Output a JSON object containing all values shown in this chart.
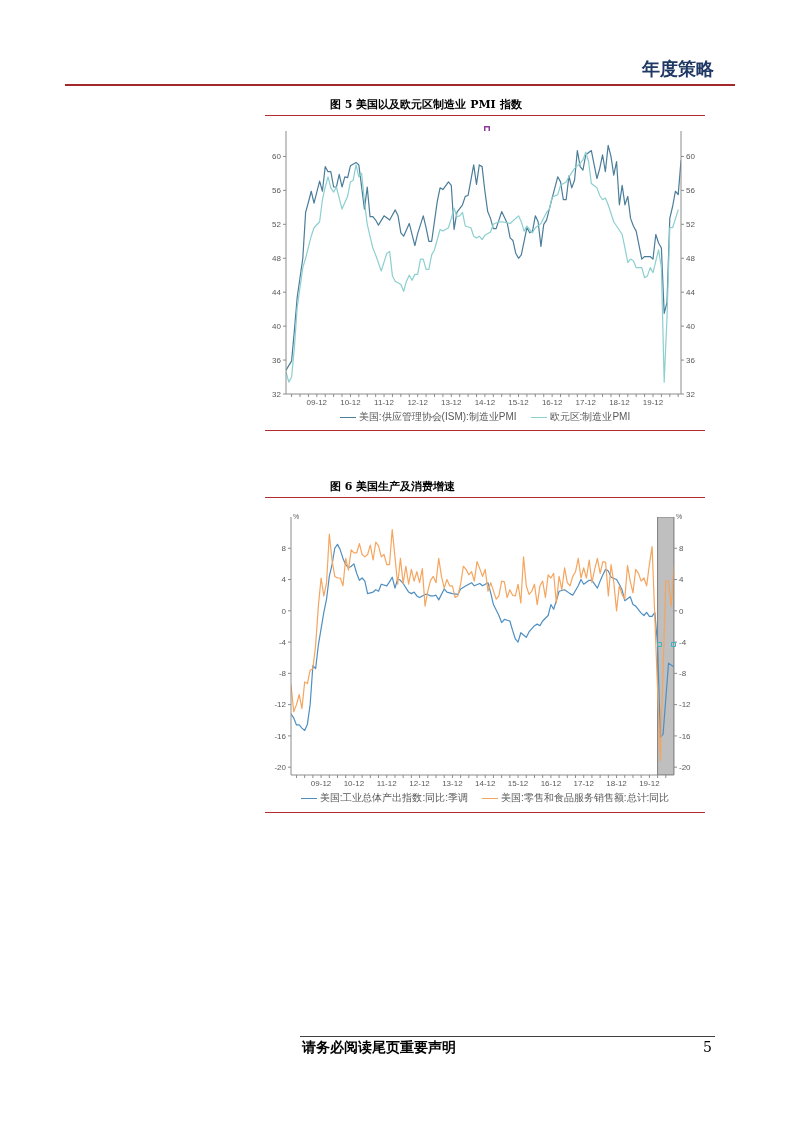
{
  "chart_data": [
    {
      "type": "line",
      "title": "图 5 美国以及欧元区制造业 PMI 指数",
      "annotations": [
        "年度策略"
      ],
      "legend": "bottom",
      "xlim": [
        "2009-01",
        "2020-10"
      ],
      "xticks": [
        {
          "value": "2009-03",
          "label": null
        },
        {
          "value": "2009-06",
          "label": null
        },
        {
          "value": "2009-09",
          "label": null
        },
        {
          "value": "2009-12",
          "label": "09-12"
        },
        {
          "value": "2010-03",
          "label": null
        },
        {
          "value": "2010-06",
          "label": null
        },
        {
          "value": "2010-09",
          "label": null
        },
        {
          "value": "2010-12",
          "label": "10-12"
        },
        {
          "value": "2011-03",
          "label": null
        },
        {
          "value": "2011-06",
          "label": null
        },
        {
          "value": "2011-09",
          "label": null
        },
        {
          "value": "2011-12",
          "label": "11-12"
        },
        {
          "value": "2012-03",
          "label": null
        },
        {
          "value": "2012-06",
          "label": null
        },
        {
          "value": "2012-09",
          "label": null
        },
        {
          "value": "2012-12",
          "label": "12-12"
        },
        {
          "value": "2013-03",
          "label": null
        },
        {
          "value": "2013-06",
          "label": null
        },
        {
          "value": "2013-09",
          "label": null
        },
        {
          "value": "2013-12",
          "label": "13-12"
        },
        {
          "value": "2014-03",
          "label": null
        },
        {
          "value": "2014-06",
          "label": null
        },
        {
          "value": "2014-09",
          "label": null
        },
        {
          "value": "2014-12",
          "label": "14-12"
        },
        {
          "value": "2015-03",
          "label": null
        },
        {
          "value": "2015-06",
          "label": null
        },
        {
          "value": "2015-09",
          "label": null
        },
        {
          "value": "2015-12",
          "label": "15-12"
        },
        {
          "value": "2016-03",
          "label": null
        },
        {
          "value": "2016-06",
          "label": null
        },
        {
          "value": "2016-09",
          "label": null
        },
        {
          "value": "2016-12",
          "label": "16-12"
        },
        {
          "value": "2017-03",
          "label": null
        },
        {
          "value": "2017-06",
          "label": null
        },
        {
          "value": "2017-09",
          "label": null
        },
        {
          "value": "2017-12",
          "label": "17-12"
        },
        {
          "value": "2018-03",
          "label": null
        },
        {
          "value": "2018-06",
          "label": null
        },
        {
          "value": "2018-09",
          "label": null
        },
        {
          "value": "2018-12",
          "label": "18-12"
        },
        {
          "value": "2019-03",
          "label": null
        },
        {
          "value": "2019-06",
          "label": null
        },
        {
          "value": "2019-09",
          "label": null
        },
        {
          "value": "2019-12",
          "label": "19-12"
        },
        {
          "value": "2020-03",
          "label": null
        },
        {
          "value": "2020-06",
          "label": null
        },
        {
          "value": "2020-09",
          "label": null
        }
      ],
      "ylim": [
        32,
        63
      ],
      "yticks": [
        32,
        36,
        40,
        44,
        48,
        52,
        56,
        60
      ],
      "y2lim": [
        32,
        63
      ],
      "y2ticks": [
        32,
        36,
        40,
        44,
        48,
        52,
        56,
        60
      ],
      "series": [
        {
          "name": "美国:供应管理协会(ISM):制造业PMI",
          "color": "#4a7d99",
          "x": [
            "2009-01",
            "2009-03",
            "2009-04",
            "2009-05",
            "2009-07",
            "2009-08",
            "2009-09",
            "2009-10",
            "2009-11",
            "2010-01",
            "2010-02",
            "2010-03",
            "2010-04",
            "2010-05",
            "2010-06",
            "2010-07",
            "2010-08",
            "2010-09",
            "2010-10",
            "2010-11",
            "2010-12",
            "2011-02",
            "2011-03",
            "2011-05",
            "2011-06",
            "2011-07",
            "2011-08",
            "2011-09",
            "2011-10",
            "2011-12",
            "2012-02",
            "2012-04",
            "2012-05",
            "2012-06",
            "2012-07",
            "2012-09",
            "2012-11",
            "2012-12",
            "2013-02",
            "2013-03",
            "2013-04",
            "2013-05",
            "2013-07",
            "2013-08",
            "2013-09",
            "2013-11",
            "2013-12",
            "2014-01",
            "2014-02",
            "2014-04",
            "2014-05",
            "2014-06",
            "2014-08",
            "2014-09",
            "2014-10",
            "2014-11",
            "2014-12",
            "2015-01",
            "2015-02",
            "2015-03",
            "2015-04",
            "2015-06",
            "2015-08",
            "2015-09",
            "2015-10",
            "2015-11",
            "2015-12",
            "2016-01",
            "2016-03",
            "2016-04",
            "2016-05",
            "2016-06",
            "2016-07",
            "2016-08",
            "2016-09",
            "2016-10",
            "2016-12",
            "2017-02",
            "2017-03",
            "2017-04",
            "2017-05",
            "2017-06",
            "2017-07",
            "2017-08",
            "2017-09",
            "2017-10",
            "2017-11",
            "2017-12",
            "2018-02",
            "2018-03",
            "2018-04",
            "2018-05",
            "2018-06",
            "2018-07",
            "2018-08",
            "2018-09",
            "2018-10",
            "2018-11",
            "2018-12",
            "2019-01",
            "2019-02",
            "2019-03",
            "2019-04",
            "2019-05",
            "2019-06",
            "2019-08",
            "2019-09",
            "2019-11",
            "2019-12",
            "2020-01",
            "2020-02",
            "2020-03",
            "2020-04",
            "2020-05",
            "2020-06",
            "2020-07",
            "2020-08",
            "2020-09",
            "2020-10"
          ],
          "values": [
            34.8,
            35.9,
            39.5,
            43.4,
            48.0,
            53.4,
            54.6,
            55.9,
            54.5,
            57.1,
            55.9,
            58.8,
            58.2,
            58.2,
            56.4,
            56.4,
            57.9,
            56.4,
            57.6,
            57.5,
            58.9,
            59.3,
            59.0,
            53.8,
            56.4,
            52.9,
            52.9,
            52.5,
            51.9,
            53.0,
            52.5,
            53.7,
            53.0,
            51.0,
            50.6,
            52.1,
            49.5,
            50.9,
            53.0,
            51.6,
            50.0,
            50.0,
            54.7,
            56.3,
            56.1,
            57.0,
            56.6,
            51.4,
            53.4,
            54.3,
            55.3,
            55.4,
            59.0,
            56.7,
            59.0,
            58.8,
            55.9,
            53.5,
            52.7,
            51.5,
            51.5,
            53.5,
            52.1,
            50.4,
            50.1,
            48.6,
            48.0,
            48.4,
            51.6,
            51.0,
            51.2,
            53.0,
            52.3,
            49.4,
            52.0,
            52.5,
            55.1,
            57.6,
            57.0,
            54.9,
            54.9,
            57.7,
            56.3,
            57.2,
            60.7,
            58.8,
            58.4,
            60.2,
            60.7,
            59.0,
            57.4,
            58.6,
            60.2,
            58.2,
            61.3,
            60.0,
            57.8,
            59.4,
            54.3,
            56.6,
            54.3,
            55.3,
            52.7,
            51.8,
            51.2,
            47.9,
            48.2,
            48.2,
            47.9,
            50.8,
            49.8,
            49.2,
            41.5,
            42.8,
            52.7,
            54.1,
            55.9,
            55.5,
            59.5
          ]
        },
        {
          "name": "欧元区:制造业PMI",
          "color": "#8ccfcf",
          "x": [
            "2009-01",
            "2009-02",
            "2009-03",
            "2009-04",
            "2009-05",
            "2009-07",
            "2009-08",
            "2009-10",
            "2009-11",
            "2010-01",
            "2010-02",
            "2010-03",
            "2010-04",
            "2010-05",
            "2010-06",
            "2010-07",
            "2010-09",
            "2010-11",
            "2010-12",
            "2011-01",
            "2011-02",
            "2011-03",
            "2011-04",
            "2011-05",
            "2011-06",
            "2011-08",
            "2011-09",
            "2011-11",
            "2012-01",
            "2012-02",
            "2012-03",
            "2012-04",
            "2012-06",
            "2012-07",
            "2012-08",
            "2012-09",
            "2012-10",
            "2012-11",
            "2012-12",
            "2013-01",
            "2013-02",
            "2013-03",
            "2013-04",
            "2013-05",
            "2013-06",
            "2013-08",
            "2013-09",
            "2013-11",
            "2013-12",
            "2014-01",
            "2014-02",
            "2014-03",
            "2014-04",
            "2014-05",
            "2014-07",
            "2014-08",
            "2014-09",
            "2014-10",
            "2014-11",
            "2014-12",
            "2015-02",
            "2015-03",
            "2015-05",
            "2015-06",
            "2015-09",
            "2015-12",
            "2016-01",
            "2016-02",
            "2016-03",
            "2016-05",
            "2016-06",
            "2016-08",
            "2016-10",
            "2016-11",
            "2016-12",
            "2017-02",
            "2017-03",
            "2017-05",
            "2017-06",
            "2017-08",
            "2017-10",
            "2017-11",
            "2017-12",
            "2018-01",
            "2018-02",
            "2018-04",
            "2018-05",
            "2018-06",
            "2018-07",
            "2018-08",
            "2018-10",
            "2018-11",
            "2019-01",
            "2019-02",
            "2019-03",
            "2019-04",
            "2019-05",
            "2019-06",
            "2019-08",
            "2019-09",
            "2019-10",
            "2019-11",
            "2019-12",
            "2020-02",
            "2020-03",
            "2020-04",
            "2020-05",
            "2020-06",
            "2020-07",
            "2020-09"
          ],
          "values": [
            34.6,
            33.4,
            34.0,
            37.5,
            42.2,
            46.9,
            48.0,
            50.6,
            51.6,
            52.3,
            54.9,
            56.4,
            57.6,
            56.3,
            55.8,
            56.4,
            53.8,
            55.3,
            57.0,
            57.2,
            59.0,
            57.6,
            58.0,
            54.7,
            52.0,
            49.2,
            48.4,
            46.5,
            48.6,
            48.8,
            45.9,
            45.3,
            44.9,
            44.1,
            45.3,
            46.0,
            45.4,
            46.1,
            46.1,
            47.9,
            47.9,
            46.7,
            46.7,
            48.4,
            49.0,
            51.4,
            51.2,
            51.6,
            52.7,
            53.9,
            52.9,
            53.0,
            53.4,
            51.8,
            51.6,
            50.6,
            50.4,
            50.6,
            50.2,
            50.7,
            51.1,
            52.0,
            52.3,
            52.3,
            52.1,
            53.0,
            52.3,
            51.2,
            51.8,
            51.0,
            51.6,
            52.1,
            53.4,
            53.8,
            55.2,
            55.5,
            56.6,
            57.0,
            57.6,
            58.6,
            59.2,
            59.6,
            60.5,
            59.4,
            56.8,
            56.3,
            55.4,
            54.9,
            55.1,
            54.3,
            52.3,
            51.8,
            50.8,
            49.2,
            47.5,
            47.9,
            47.7,
            46.9,
            46.9,
            45.7,
            45.9,
            46.9,
            46.3,
            49.0,
            46.9,
            33.4,
            41.0,
            51.6,
            51.6,
            53.7
          ]
        }
      ]
    },
    {
      "type": "line",
      "title": "图 6 美国生产及消费增速",
      "ylabel": "%",
      "y2label": "%",
      "annotations": [
        "请务必阅读尾页重要声明",
        "5"
      ],
      "legend": "bottom",
      "xlim": [
        "2009-01",
        "2020-09"
      ],
      "xticks": [
        {
          "value": "2009-03",
          "label": null
        },
        {
          "value": "2009-06",
          "label": null
        },
        {
          "value": "2009-09",
          "label": null
        },
        {
          "value": "2009-12",
          "label": "09-12"
        },
        {
          "value": "2010-03",
          "label": null
        },
        {
          "value": "2010-06",
          "label": null
        },
        {
          "value": "2010-09",
          "label": null
        },
        {
          "value": "2010-12",
          "label": "10-12"
        },
        {
          "value": "2011-03",
          "label": null
        },
        {
          "value": "2011-06",
          "label": null
        },
        {
          "value": "2011-09",
          "label": null
        },
        {
          "value": "2011-12",
          "label": "11-12"
        },
        {
          "value": "2012-03",
          "label": null
        },
        {
          "value": "2012-06",
          "label": null
        },
        {
          "value": "2012-09",
          "label": null
        },
        {
          "value": "2012-12",
          "label": "12-12"
        },
        {
          "value": "2013-03",
          "label": null
        },
        {
          "value": "2013-06",
          "label": null
        },
        {
          "value": "2013-09",
          "label": null
        },
        {
          "value": "2013-12",
          "label": "13-12"
        },
        {
          "value": "2014-03",
          "label": null
        },
        {
          "value": "2014-06",
          "label": null
        },
        {
          "value": "2014-09",
          "label": null
        },
        {
          "value": "2014-12",
          "label": "14-12"
        },
        {
          "value": "2015-03",
          "label": null
        },
        {
          "value": "2015-06",
          "label": null
        },
        {
          "value": "2015-09",
          "label": null
        },
        {
          "value": "2015-12",
          "label": "15-12"
        },
        {
          "value": "2016-03",
          "label": null
        },
        {
          "value": "2016-06",
          "label": null
        },
        {
          "value": "2016-09",
          "label": null
        },
        {
          "value": "2016-12",
          "label": "16-12"
        },
        {
          "value": "2017-03",
          "label": null
        },
        {
          "value": "2017-06",
          "label": null
        },
        {
          "value": "2017-09",
          "label": null
        },
        {
          "value": "2017-12",
          "label": "17-12"
        },
        {
          "value": "2018-03",
          "label": null
        },
        {
          "value": "2018-06",
          "label": null
        },
        {
          "value": "2018-09",
          "label": null
        },
        {
          "value": "2018-12",
          "label": "18-12"
        },
        {
          "value": "2019-03",
          "label": null
        },
        {
          "value": "2019-06",
          "label": null
        },
        {
          "value": "2019-09",
          "label": null
        },
        {
          "value": "2019-12",
          "label": "19-12"
        },
        {
          "value": "2020-03",
          "label": null
        },
        {
          "value": "2020-06",
          "label": null
        }
      ],
      "ylim": [
        -21,
        12
      ],
      "yticks": [
        -20,
        -16,
        -12,
        -8,
        -4,
        0,
        4,
        8
      ],
      "y2lim": [
        -21,
        12
      ],
      "y2ticks": [
        -20,
        -16,
        -12,
        -8,
        -4,
        0,
        4,
        8
      ],
      "bands": [
        {
          "axis": "x",
          "from": "2020-03",
          "to": "2020-09",
          "color": "#bfbfbf"
        }
      ],
      "series": [
        {
          "name": "美国:工业总体产出指数:同比:季调",
          "color": "#4e8fc2",
          "x": [
            "2009-01",
            "2009-02",
            "2009-03",
            "2009-04",
            "2009-05",
            "2009-06",
            "2009-07",
            "2009-08",
            "2009-09",
            "2009-10",
            "2009-11",
            "2010-01",
            "2010-02",
            "2010-03",
            "2010-04",
            "2010-05",
            "2010-06",
            "2010-07",
            "2010-08",
            "2010-09",
            "2010-10",
            "2010-11",
            "2010-12",
            "2011-01",
            "2011-02",
            "2011-03",
            "2011-04",
            "2011-05",
            "2011-07",
            "2011-08",
            "2011-09",
            "2011-10",
            "2011-12",
            "2012-01",
            "2012-02",
            "2012-03",
            "2012-04",
            "2012-05",
            "2012-06",
            "2012-08",
            "2012-09",
            "2012-10",
            "2012-11",
            "2012-12",
            "2013-02",
            "2013-03",
            "2013-04",
            "2013-05",
            "2013-06",
            "2013-07",
            "2013-09",
            "2013-10",
            "2013-12",
            "2014-02",
            "2014-03",
            "2014-05",
            "2014-07",
            "2014-08",
            "2014-10",
            "2014-11",
            "2015-01",
            "2015-02",
            "2015-03",
            "2015-05",
            "2015-06",
            "2015-07",
            "2015-09",
            "2015-10",
            "2015-11",
            "2015-12",
            "2016-01",
            "2016-02",
            "2016-03",
            "2016-04",
            "2016-06",
            "2016-07",
            "2016-08",
            "2016-09",
            "2016-11",
            "2016-12",
            "2017-01",
            "2017-02",
            "2017-03",
            "2017-05",
            "2017-07",
            "2017-08",
            "2017-10",
            "2017-11",
            "2017-12",
            "2018-02",
            "2018-03",
            "2018-05",
            "2018-06",
            "2018-07",
            "2018-08",
            "2018-09",
            "2018-10",
            "2018-12",
            "2019-01",
            "2019-02",
            "2019-03",
            "2019-05",
            "2019-06",
            "2019-07",
            "2019-09",
            "2019-10",
            "2019-11",
            "2019-12",
            "2020-01",
            "2020-02",
            "2020-03",
            "2020-04",
            "2020-05",
            "2020-07",
            "2020-09"
          ],
          "values": [
            -13.2,
            -13.7,
            -14.6,
            -14.6,
            -15.0,
            -15.3,
            -14.5,
            -12.0,
            -7.0,
            -7.4,
            -4.4,
            -0.2,
            1.5,
            4.4,
            5.9,
            8.0,
            8.5,
            7.8,
            6.7,
            5.9,
            5.5,
            5.7,
            6.0,
            4.8,
            3.9,
            4.2,
            3.8,
            2.2,
            2.4,
            2.7,
            2.5,
            3.4,
            3.2,
            3.7,
            4.3,
            2.9,
            4.1,
            3.9,
            3.5,
            2.4,
            2.2,
            2.4,
            1.9,
            1.7,
            2.1,
            2.1,
            1.9,
            1.9,
            2.0,
            1.4,
            2.8,
            2.4,
            2.2,
            2.1,
            2.8,
            3.2,
            3.6,
            3.2,
            3.5,
            3.2,
            3.6,
            2.3,
            0.8,
            -0.6,
            -1.5,
            -1.1,
            -1.3,
            -2.5,
            -3.6,
            -4.0,
            -2.8,
            -3.1,
            -3.4,
            -2.7,
            -1.9,
            -1.7,
            -1.9,
            -1.3,
            -0.6,
            0.8,
            0.2,
            1.3,
            2.5,
            2.7,
            2.2,
            2.0,
            3.2,
            4.0,
            3.4,
            3.9,
            3.9,
            2.9,
            3.8,
            4.6,
            5.3,
            5.1,
            4.3,
            4.0,
            3.4,
            2.7,
            1.3,
            1.8,
            0.8,
            0.6,
            -0.3,
            -0.6,
            -0.2,
            -0.7,
            -0.7,
            -0.2,
            -4.4,
            -16.2,
            -15.8,
            -6.7,
            -7.2
          ]
        },
        {
          "name": "美国:零售和食品服务销售额:总计:同比",
          "color": "#f5a55e",
          "x": [
            "2009-01",
            "2009-02",
            "2009-03",
            "2009-04",
            "2009-05",
            "2009-06",
            "2009-07",
            "2009-08",
            "2009-09",
            "2009-10",
            "2009-11",
            "2009-12",
            "2010-01",
            "2010-02",
            "2010-03",
            "2010-04",
            "2010-05",
            "2010-06",
            "2010-07",
            "2010-08",
            "2010-09",
            "2010-10",
            "2010-11",
            "2010-12",
            "2011-01",
            "2011-02",
            "2011-03",
            "2011-04",
            "2011-05",
            "2011-06",
            "2011-07",
            "2011-08",
            "2011-09",
            "2011-10",
            "2011-11",
            "2011-12",
            "2012-01",
            "2012-02",
            "2012-03",
            "2012-04",
            "2012-05",
            "2012-06",
            "2012-07",
            "2012-08",
            "2012-09",
            "2012-10",
            "2012-11",
            "2012-12",
            "2013-01",
            "2013-02",
            "2013-03",
            "2013-04",
            "2013-05",
            "2013-06",
            "2013-07",
            "2013-08",
            "2013-09",
            "2013-10",
            "2013-11",
            "2013-12",
            "2014-01",
            "2014-02",
            "2014-03",
            "2014-04",
            "2014-05",
            "2014-06",
            "2014-07",
            "2014-08",
            "2014-09",
            "2014-10",
            "2014-11",
            "2014-12",
            "2015-01",
            "2015-02",
            "2015-04",
            "2015-05",
            "2015-06",
            "2015-07",
            "2015-08",
            "2015-09",
            "2015-10",
            "2015-11",
            "2015-12",
            "2016-01",
            "2016-02",
            "2016-03",
            "2016-04",
            "2016-05",
            "2016-06",
            "2016-07",
            "2016-08",
            "2016-09",
            "2016-10",
            "2016-11",
            "2016-12",
            "2017-01",
            "2017-02",
            "2017-03",
            "2017-04",
            "2017-05",
            "2017-06",
            "2017-07",
            "2017-08",
            "2017-09",
            "2017-10",
            "2017-11",
            "2017-12",
            "2018-01",
            "2018-02",
            "2018-03",
            "2018-04",
            "2018-05",
            "2018-06",
            "2018-07",
            "2018-08",
            "2018-09",
            "2018-10",
            "2018-11",
            "2018-12",
            "2019-01",
            "2019-02",
            "2019-03",
            "2019-04",
            "2019-05",
            "2019-06",
            "2019-07",
            "2019-08",
            "2019-09",
            "2019-10",
            "2019-11",
            "2019-12",
            "2020-01",
            "2020-04",
            "2020-06",
            "2020-07",
            "2020-08",
            "2020-09"
          ],
          "values": [
            -9.5,
            -12.9,
            -12.0,
            -10.7,
            -12.5,
            -9.1,
            -9.3,
            -7.6,
            -7.4,
            -4.4,
            0.6,
            4.2,
            1.9,
            3.6,
            9.8,
            6.5,
            4.4,
            4.2,
            4.2,
            3.2,
            6.7,
            5.2,
            7.8,
            7.4,
            7.4,
            8.6,
            7.2,
            6.9,
            7.2,
            8.4,
            6.5,
            8.8,
            8.3,
            6.9,
            7.2,
            5.9,
            5.9,
            10.4,
            6.9,
            3.4,
            6.7,
            3.5,
            5.7,
            3.4,
            5.3,
            3.8,
            5.0,
            3.6,
            5.4,
            0.6,
            2.5,
            3.9,
            4.4,
            3.6,
            6.7,
            4.4,
            2.9,
            4.0,
            3.2,
            3.2,
            1.7,
            1.9,
            3.4,
            5.7,
            5.3,
            4.6,
            5.0,
            3.8,
            6.3,
            5.4,
            4.4,
            5.3,
            2.5,
            3.6,
            1.5,
            1.9,
            3.8,
            3.7,
            1.7,
            2.7,
            2.0,
            1.9,
            3.4,
            1.0,
            6.9,
            3.2,
            2.1,
            2.5,
            3.4,
            0.8,
            3.2,
            3.8,
            1.7,
            4.6,
            4.2,
            4.8,
            1.0,
            4.4,
            2.7,
            5.5,
            3.6,
            3.2,
            4.4,
            5.0,
            6.7,
            4.2,
            5.5,
            4.2,
            6.5,
            3.6,
            5.3,
            6.7,
            4.8,
            6.3,
            6.2,
            1.9,
            5.9,
            3.6,
            0.0,
            3.2,
            2.1,
            1.5,
            5.8,
            3.8,
            2.3,
            5.3,
            4.8,
            3.8,
            4.2,
            3.2,
            5.9,
            8.2,
            -19.2,
            3.8,
            3.8,
            0.6,
            5.7
          ]
        }
      ]
    }
  ]
}
